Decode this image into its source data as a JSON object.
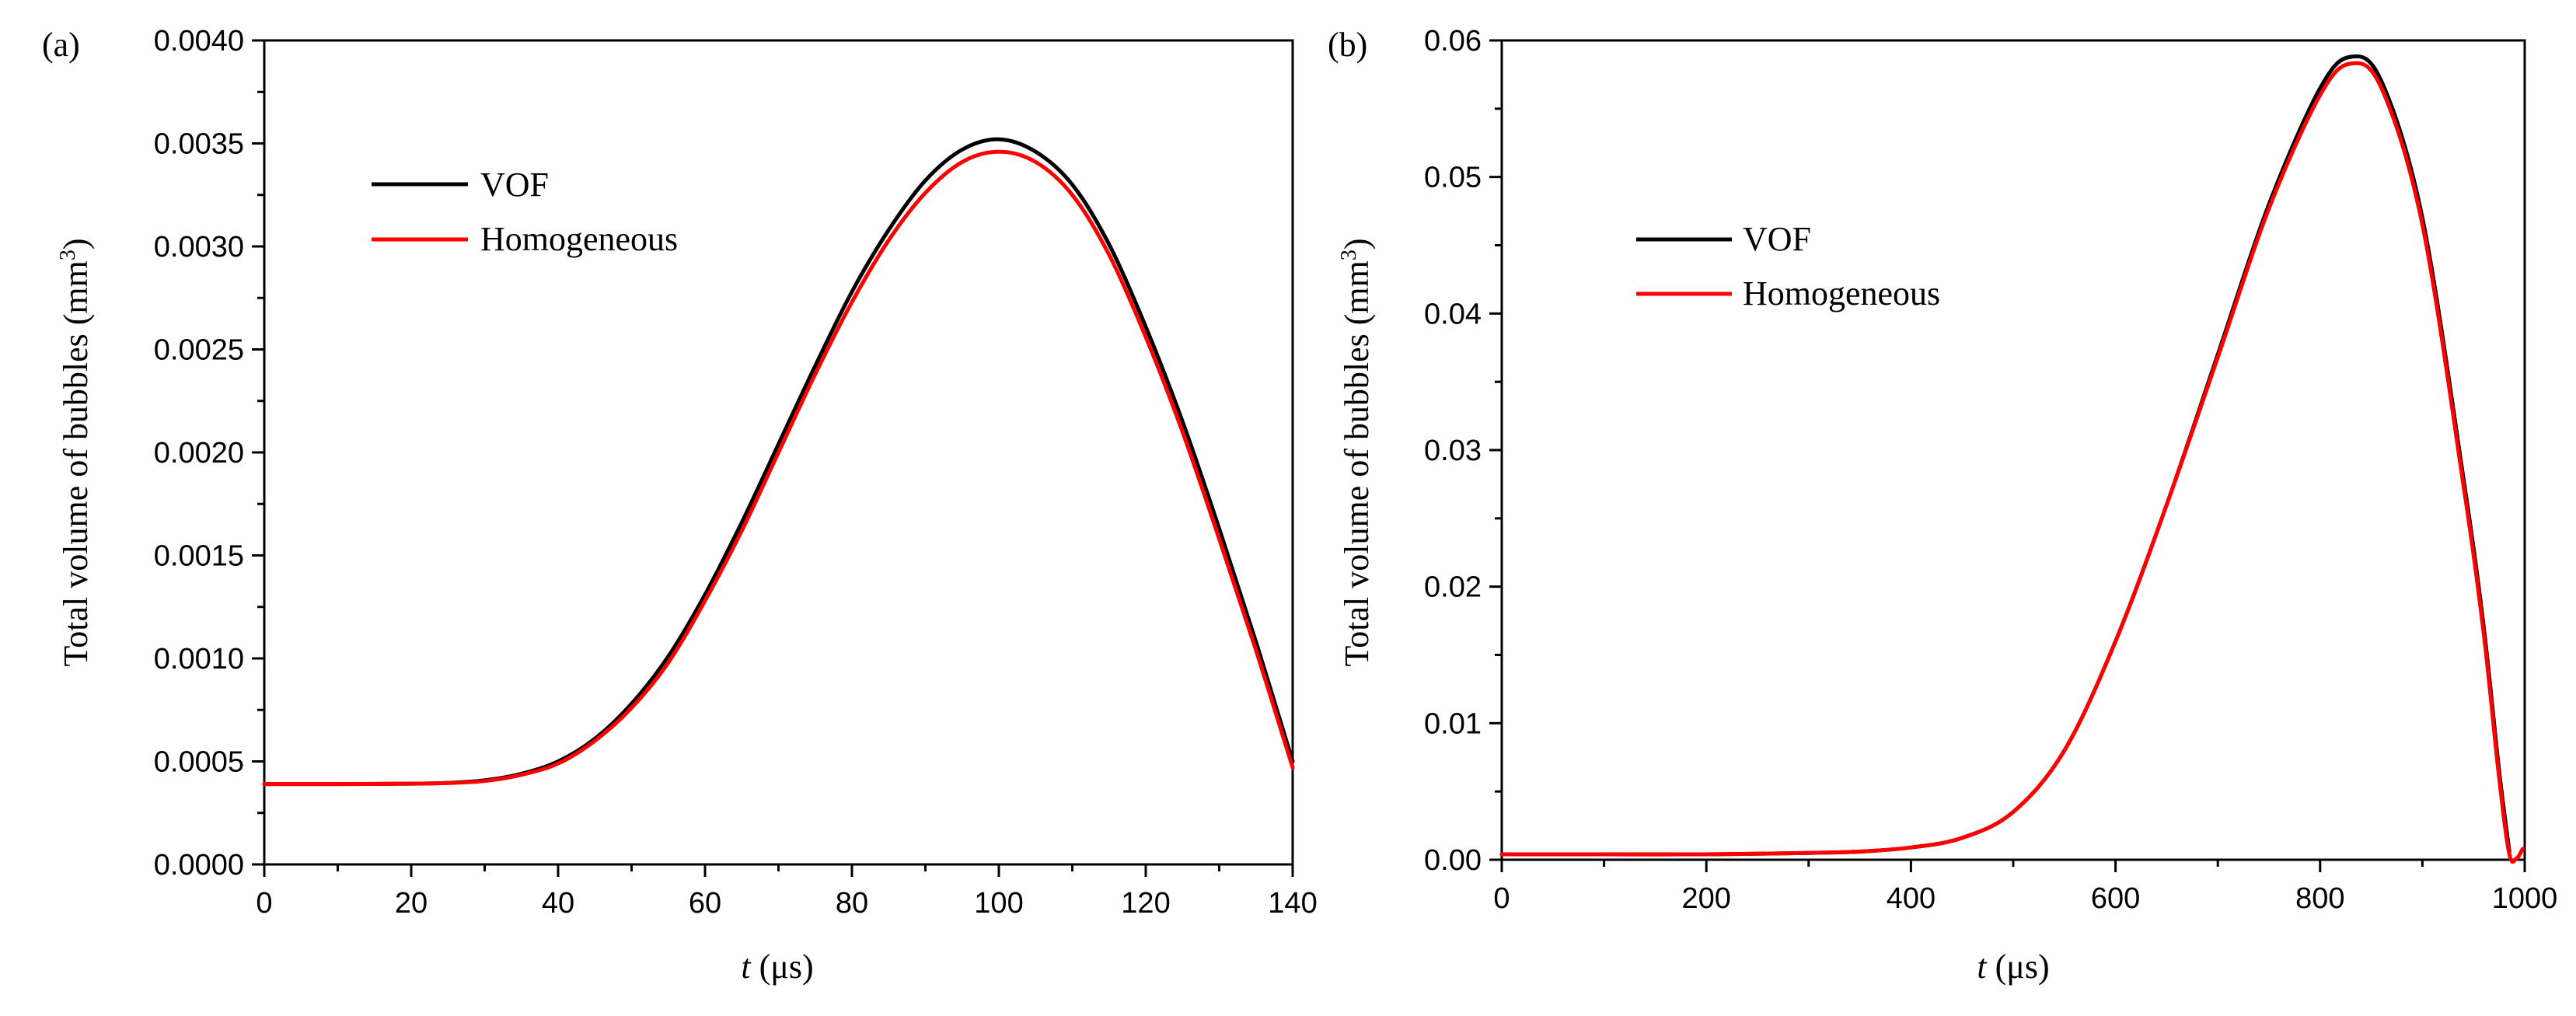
{
  "chart_data": [
    {
      "type": "line",
      "panel_label": "(a)",
      "ylabel": "Total volume of bubbles (mm",
      "ylabel_sup": "3",
      "ylabel_close": ")",
      "xlabel_var": "t",
      "xlabel_unit": " (μs)",
      "xlim": [
        0,
        140
      ],
      "ylim": [
        0,
        0.004
      ],
      "xticks": [
        0,
        20,
        40,
        60,
        80,
        100,
        120,
        140
      ],
      "xtick_labels": [
        "0",
        "20",
        "40",
        "60",
        "80",
        "100",
        "120",
        "140"
      ],
      "yticks": [
        0,
        0.0005,
        0.001,
        0.0015,
        0.002,
        0.0025,
        0.003,
        0.0035,
        0.004
      ],
      "ytick_labels": [
        "0.0000",
        "0.0005",
        "0.0010",
        "0.0015",
        "0.0020",
        "0.0025",
        "0.0030",
        "0.0035",
        "0.0040"
      ],
      "legend_position": "upper-left",
      "series": [
        {
          "name": "VOF",
          "color": "#000000",
          "x": [
            0,
            10,
            20,
            25,
            30,
            35,
            40,
            45,
            50,
            55,
            60,
            65,
            70,
            75,
            80,
            85,
            90,
            95,
            100,
            105,
            110,
            115,
            120,
            125,
            130,
            135,
            140
          ],
          "y": [
            0.00039,
            0.00039,
            0.000392,
            0.000396,
            0.000408,
            0.00044,
            0.0005,
            0.00061,
            0.00078,
            0.00101,
            0.00131,
            0.00166,
            0.00204,
            0.00242,
            0.00278,
            0.00308,
            0.00332,
            0.00347,
            0.00352,
            0.00346,
            0.0033,
            0.00301,
            0.00261,
            0.00215,
            0.00163,
            0.00108,
            0.0005
          ]
        },
        {
          "name": "Homogeneous",
          "color": "#ff0000",
          "x": [
            0,
            10,
            20,
            25,
            30,
            35,
            40,
            45,
            50,
            55,
            60,
            65,
            70,
            75,
            80,
            85,
            90,
            95,
            100,
            105,
            110,
            115,
            120,
            125,
            130,
            135,
            140
          ],
          "y": [
            0.00039,
            0.00039,
            0.000392,
            0.000395,
            0.000405,
            0.000435,
            0.00049,
            0.0006,
            0.00076,
            0.00098,
            0.00128,
            0.00162,
            0.002,
            0.00238,
            0.00273,
            0.00303,
            0.00326,
            0.00341,
            0.00346,
            0.00341,
            0.00325,
            0.00296,
            0.00256,
            0.0021,
            0.00158,
            0.00104,
            0.00047
          ]
        }
      ]
    },
    {
      "type": "line",
      "panel_label": "(b)",
      "ylabel": "Total volume of bubbles (mm",
      "ylabel_sup": "3",
      "ylabel_close": ")",
      "xlabel_var": "t",
      "xlabel_unit": " (μs)",
      "xlim": [
        0,
        1000
      ],
      "ylim": [
        0,
        0.06
      ],
      "xticks": [
        0,
        200,
        400,
        600,
        800,
        1000
      ],
      "xtick_labels": [
        "0",
        "200",
        "400",
        "600",
        "800",
        "1000"
      ],
      "yticks": [
        0,
        0.01,
        0.02,
        0.03,
        0.04,
        0.05,
        0.06
      ],
      "ytick_labels": [
        "0.00",
        "0.01",
        "0.02",
        "0.03",
        "0.04",
        "0.05",
        "0.06"
      ],
      "legend_position": "upper-left",
      "series": [
        {
          "name": "VOF",
          "color": "#000000",
          "x": [
            0,
            100,
            200,
            300,
            350,
            400,
            450,
            500,
            550,
            600,
            650,
            700,
            750,
            800,
            830,
            860,
            900,
            940,
            960,
            975,
            985
          ],
          "y": [
            0.0004,
            0.0004,
            0.0004,
            0.0005,
            0.0006,
            0.0009,
            0.0016,
            0.0035,
            0.008,
            0.016,
            0.026,
            0.037,
            0.048,
            0.0565,
            0.0588,
            0.057,
            0.047,
            0.028,
            0.017,
            0.0065,
            0.0006
          ]
        },
        {
          "name": "Homogeneous",
          "color": "#ff0000",
          "x": [
            0,
            100,
            200,
            300,
            350,
            400,
            450,
            500,
            550,
            600,
            650,
            700,
            750,
            800,
            830,
            860,
            900,
            940,
            960,
            975,
            985,
            992,
            998
          ],
          "y": [
            0.0004,
            0.0004,
            0.0004,
            0.0005,
            0.0006,
            0.0009,
            0.0016,
            0.0035,
            0.008,
            0.016,
            0.026,
            0.0368,
            0.0477,
            0.056,
            0.0583,
            0.0565,
            0.0465,
            0.0275,
            0.0165,
            0.006,
            0.0004,
            0.0001,
            0.0008
          ]
        }
      ]
    }
  ]
}
